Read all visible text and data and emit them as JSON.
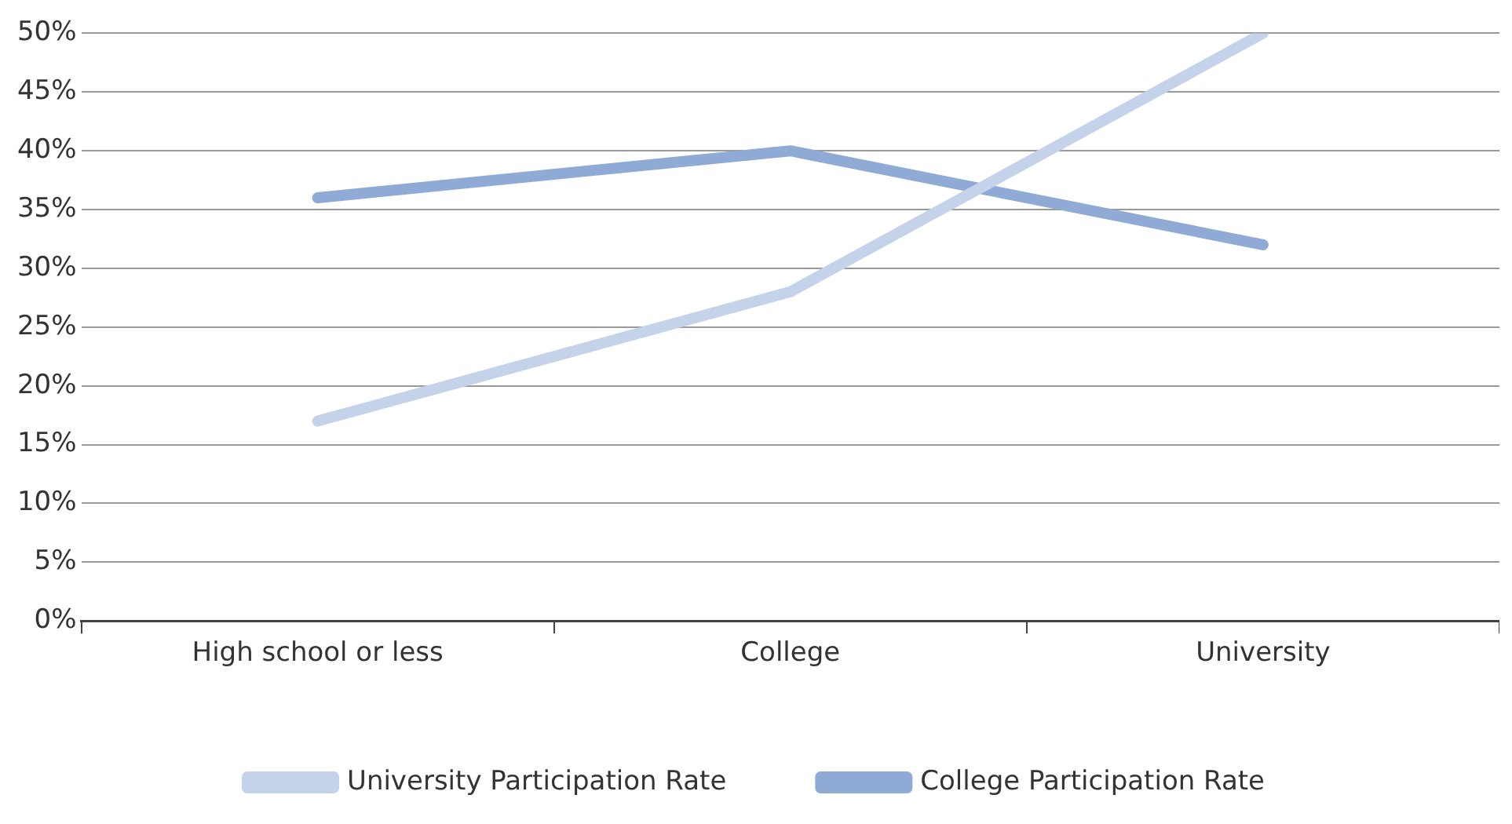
{
  "chart_data": {
    "type": "line",
    "categories": [
      "High school or less",
      "College",
      "University"
    ],
    "series": [
      {
        "name": "University Participation Rate",
        "color": "#c5d3ea",
        "values": [
          17,
          28,
          50
        ]
      },
      {
        "name": "College Participation Rate",
        "color": "#8faad4",
        "values": [
          36,
          40,
          32
        ]
      }
    ],
    "ylim": [
      0,
      50
    ],
    "yticks": [
      {
        "value": 0,
        "label": "0%"
      },
      {
        "value": 5,
        "label": "5%"
      },
      {
        "value": 10,
        "label": "10%"
      },
      {
        "value": 15,
        "label": "15%"
      },
      {
        "value": 20,
        "label": "20%"
      },
      {
        "value": 25,
        "label": "25%"
      },
      {
        "value": 30,
        "label": "30%"
      },
      {
        "value": 35,
        "label": "35%"
      },
      {
        "value": 40,
        "label": "40%"
      },
      {
        "value": 45,
        "label": "45%"
      },
      {
        "value": 50,
        "label": "50%"
      }
    ],
    "grid": "y",
    "legend": "bottom",
    "marker": "none"
  }
}
